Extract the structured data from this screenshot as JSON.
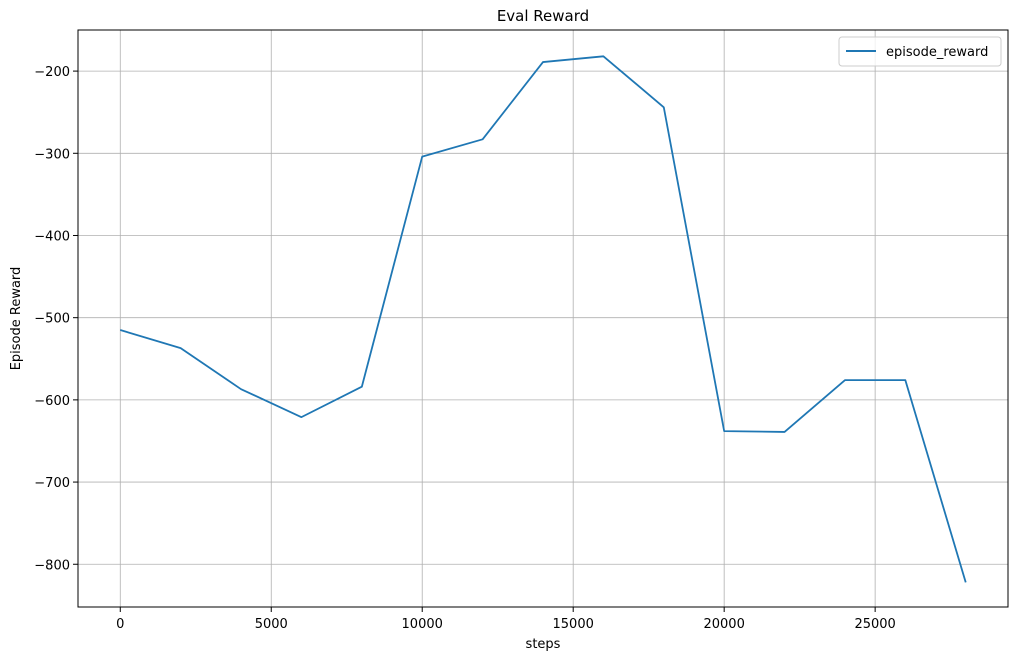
{
  "chart_data": {
    "type": "line",
    "title": "Eval Reward",
    "xlabel": "steps",
    "ylabel": "Episode Reward",
    "xlim": [
      -1400,
      29400
    ],
    "ylim": [
      -852,
      -150
    ],
    "xticks": [
      0,
      5000,
      10000,
      15000,
      20000,
      25000
    ],
    "xtick_labels": [
      "0",
      "5000",
      "10000",
      "15000",
      "20000",
      "25000"
    ],
    "yticks": [
      -200,
      -300,
      -400,
      -500,
      -600,
      -700,
      -800
    ],
    "ytick_labels": [
      "−200",
      "−300",
      "−400",
      "−500",
      "−600",
      "−700",
      "−800"
    ],
    "grid": true,
    "legend_position": "top-right",
    "series": [
      {
        "name": "episode_reward",
        "color": "#1f77b4",
        "x": [
          0,
          2000,
          4000,
          6000,
          8000,
          10000,
          12000,
          14000,
          16000,
          18000,
          20000,
          22000,
          24000,
          26000,
          28000
        ],
        "y": [
          -515,
          -537,
          -587,
          -621,
          -584,
          -304,
          -283,
          -189,
          -182,
          -244,
          -638,
          -639,
          -576,
          -576,
          -822
        ]
      }
    ]
  }
}
